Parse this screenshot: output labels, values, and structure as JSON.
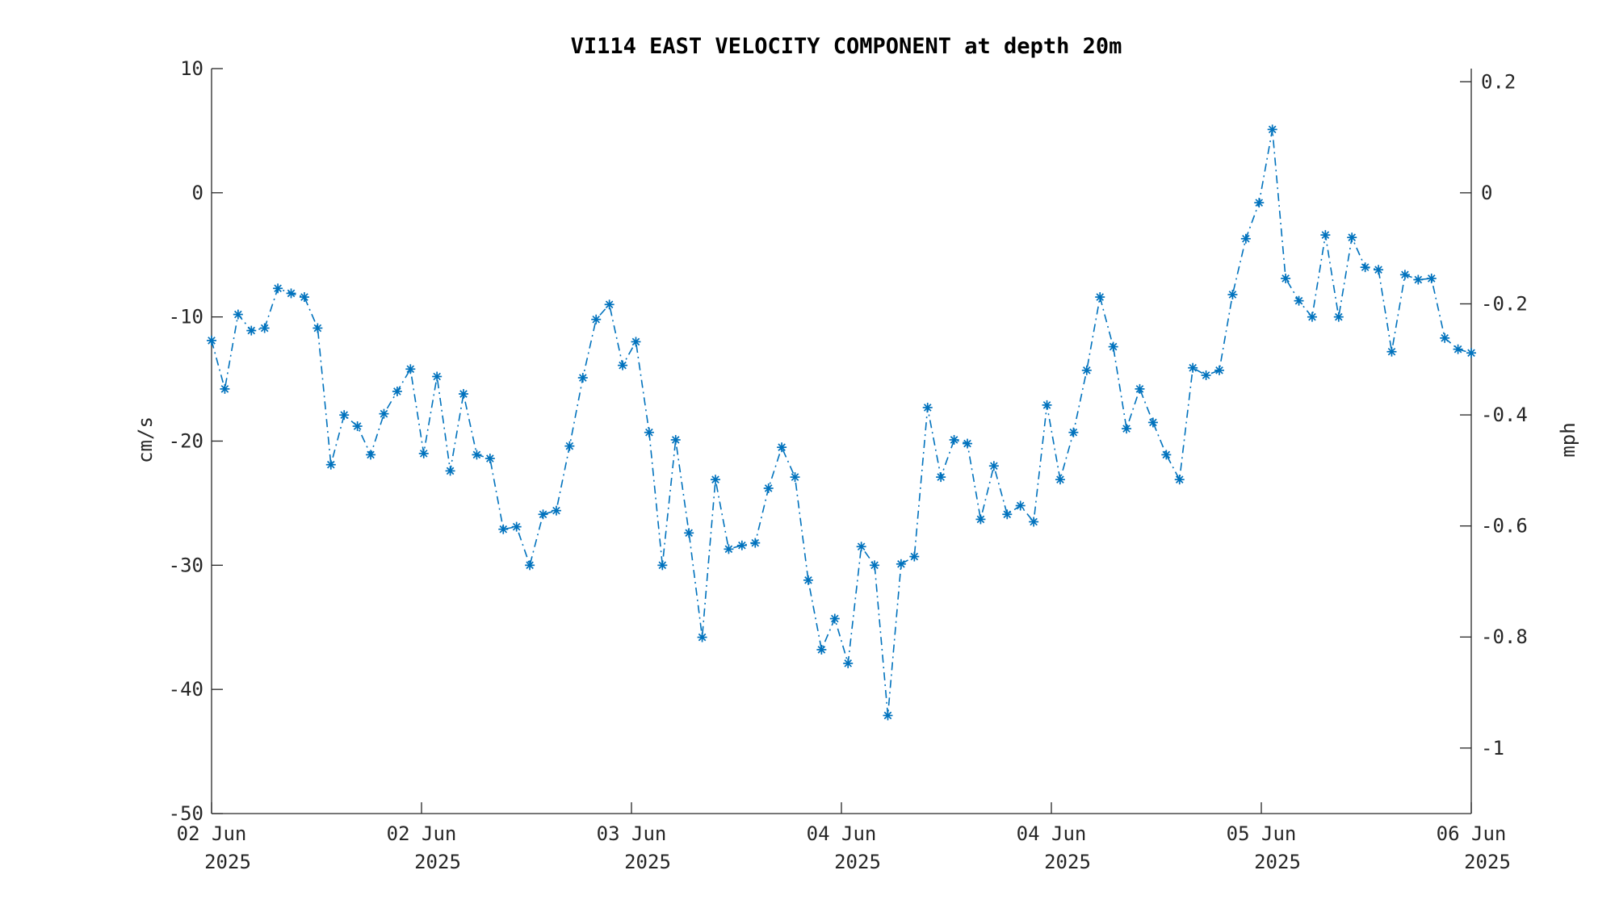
{
  "chart_data": {
    "type": "line",
    "title": "VI114 EAST VELOCITY COMPONENT at depth 20m",
    "ylabel": "cm/s",
    "ylabel_right": "mph",
    "ylim": [
      -50,
      10
    ],
    "ylim_right": [
      -1.118,
      0.2237
    ],
    "yticks": [
      "10",
      "0",
      "-10",
      "-20",
      "-30",
      "-40",
      "-50"
    ],
    "yticks_right": [
      "0.2",
      "0",
      "-0.2",
      "-0.4",
      "-0.6",
      "-0.8",
      "-1"
    ],
    "xtick_labels": [
      {
        "day": "02 Jun",
        "year": "2025"
      },
      {
        "day": "02 Jun",
        "year": "2025"
      },
      {
        "day": "03 Jun",
        "year": "2025"
      },
      {
        "day": "04 Jun",
        "year": "2025"
      },
      {
        "day": "04 Jun",
        "year": "2025"
      },
      {
        "day": "05 Jun",
        "year": "2025"
      },
      {
        "day": "06 Jun",
        "year": "2025"
      }
    ],
    "grid": false,
    "legend": "none",
    "line_style": "dash-dot",
    "marker": "asterisk",
    "series_color": "#0072BD",
    "series": [
      {
        "values": [
          -11.9,
          -15.8,
          -9.8,
          -11.1,
          -10.9,
          -7.7,
          -8.1,
          -8.4,
          -10.9,
          -21.9,
          -17.9,
          -18.8,
          -21.1,
          -17.8,
          -16.0,
          -14.2,
          -21.0,
          -14.8,
          -22.4,
          -16.2,
          -21.1,
          -21.4,
          -27.1,
          -26.9,
          -30.0,
          -25.9,
          -25.6,
          -20.4,
          -14.9,
          -10.2,
          -9.0,
          -13.9,
          -12.0,
          -19.3,
          -30.0,
          -19.9,
          -27.4,
          -35.8,
          -23.1,
          -28.7,
          -28.4,
          -28.2,
          -23.8,
          -20.5,
          -22.9,
          -31.2,
          -36.8,
          -34.3,
          -37.9,
          -28.5,
          -30.0,
          -42.1,
          -29.9,
          -29.3,
          -17.3,
          -22.9,
          -19.9,
          -20.2,
          -26.3,
          -22.0,
          -25.9,
          -25.2,
          -26.5,
          -17.1,
          -23.1,
          -19.3,
          -14.3,
          -8.4,
          -12.4,
          -19.0,
          -15.8,
          -18.5,
          -21.1,
          -23.1,
          -14.1,
          -14.7,
          -14.3,
          -8.2,
          -3.7,
          -0.8,
          5.1,
          -6.9,
          -8.7,
          -10.0,
          -3.4,
          -10.0,
          -3.6,
          -6.0,
          -6.2,
          -12.8,
          -6.6,
          -7.0,
          -6.9,
          -11.7,
          -12.6,
          -12.9
        ]
      }
    ]
  }
}
